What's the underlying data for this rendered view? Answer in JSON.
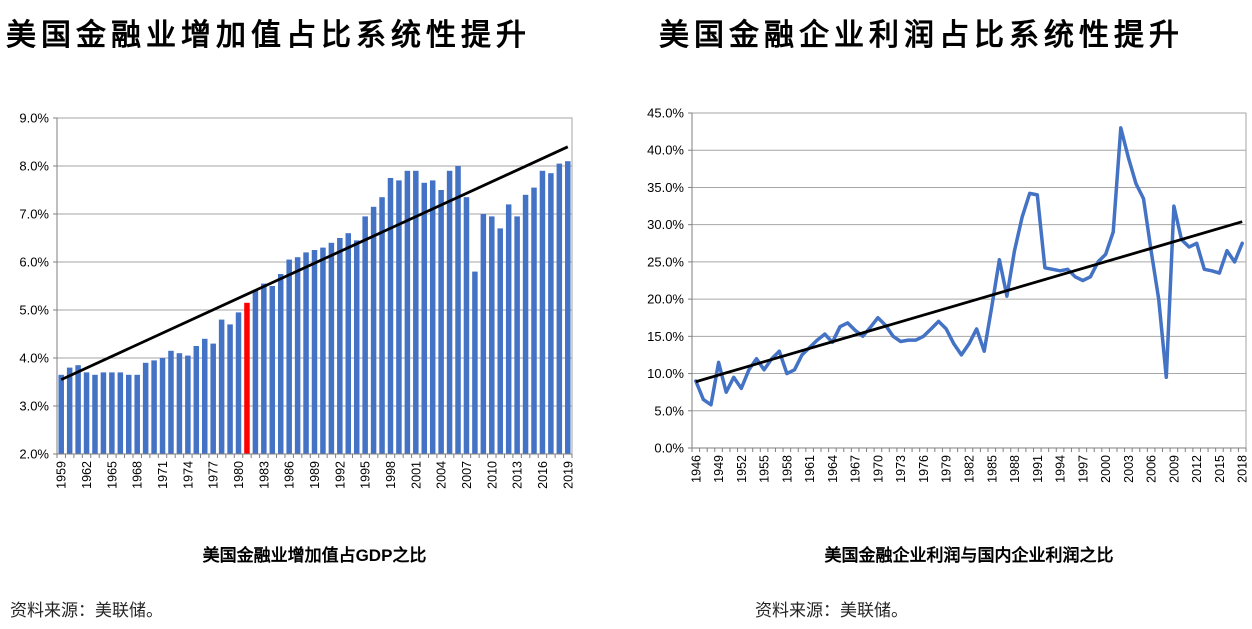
{
  "panels": [
    {
      "title": "美国金融业增加值占比系统性提升",
      "caption": "美国金融业增加值占GDP之比",
      "source": "资料来源：美联储。"
    },
    {
      "title": "美国金融企业利润占比系统性提升",
      "caption": "美国金融企业利润与国内企业利润之比",
      "source": "资料来源：美联储。"
    }
  ],
  "colors": {
    "series_blue": "#4472C4",
    "highlight_red": "#FF0000",
    "trend_black": "#000000",
    "grid_gray": "#A6A6A6",
    "axis_gray": "#7F7F7F"
  },
  "chart_data": [
    {
      "name": "us-finance-value-added-share-of-gdp",
      "type": "bar",
      "title": "美国金融业增加值占GDP之比",
      "start_year": 1959,
      "end_year": 2019,
      "frequency": "annual",
      "unit": "percent of GDP",
      "values": [
        3.65,
        3.8,
        3.85,
        3.7,
        3.65,
        3.7,
        3.7,
        3.7,
        3.65,
        3.65,
        3.9,
        3.95,
        4.0,
        4.15,
        4.1,
        4.05,
        4.25,
        4.4,
        4.3,
        4.8,
        4.7,
        4.95,
        5.15,
        5.4,
        5.55,
        5.5,
        5.75,
        6.05,
        6.1,
        6.2,
        6.25,
        6.3,
        6.4,
        6.5,
        6.6,
        6.45,
        6.95,
        7.15,
        7.35,
        7.75,
        7.7,
        7.9,
        7.9,
        7.65,
        7.7,
        7.5,
        7.9,
        8.0,
        7.35,
        5.8,
        7.0,
        6.95,
        6.7,
        7.2,
        6.95,
        7.4,
        7.55,
        7.9,
        7.85,
        8.05,
        8.1
      ],
      "ylim": [
        2,
        9
      ],
      "ytick_labels": [
        "2.0%",
        "3.0%",
        "4.0%",
        "5.0%",
        "6.0%",
        "7.0%",
        "8.0%",
        "9.0%"
      ],
      "xtick_labels": [
        "1959",
        "1962",
        "1965",
        "1968",
        "1971",
        "1974",
        "1977",
        "1980",
        "1983",
        "1986",
        "1989",
        "1992",
        "1995",
        "1998",
        "2001",
        "2004",
        "2007",
        "2010",
        "2013",
        "2016",
        "2019"
      ],
      "xtick_every": 3,
      "bar_color": "#4472C4",
      "highlight": {
        "year": 1981,
        "value": 5.15,
        "color": "#FF0000"
      },
      "trend": {
        "from_year": 1959,
        "from_value": 3.55,
        "to_year": 2019,
        "to_value": 8.4,
        "color": "#000000"
      },
      "grid": true,
      "legend": "none"
    },
    {
      "name": "us-financial-profits-to-domestic-profits-ratio",
      "type": "line",
      "title": "美国金融企业利润与国内企业利润之比",
      "start_year": 1946,
      "end_year": 2018,
      "frequency": "annual",
      "unit": "percent of domestic corporate profits",
      "values": [
        9.0,
        6.5,
        5.8,
        11.5,
        7.5,
        9.5,
        8.0,
        10.5,
        12.0,
        10.5,
        12.0,
        13.0,
        10.0,
        10.5,
        12.5,
        13.5,
        14.5,
        15.3,
        14.2,
        16.3,
        16.8,
        15.8,
        15.0,
        16.2,
        17.5,
        16.5,
        15.0,
        14.3,
        14.5,
        14.5,
        15.0,
        16.0,
        17.0,
        16.0,
        14.0,
        12.5,
        14.0,
        16.0,
        13.0,
        19.0,
        25.3,
        20.4,
        26.5,
        31.0,
        34.2,
        34.0,
        24.2,
        24.0,
        23.8,
        24.0,
        23.0,
        22.5,
        23.0,
        25.0,
        26.0,
        29.0,
        43.0,
        39.0,
        35.5,
        33.5,
        26.5,
        20.0,
        9.5,
        32.5,
        28.0,
        27.0,
        27.5,
        24.0,
        23.8,
        23.5,
        26.5,
        25.0,
        27.5
      ],
      "ylim": [
        0,
        45
      ],
      "ytick_labels": [
        "0.0%",
        "5.0%",
        "10.0%",
        "15.0%",
        "20.0%",
        "25.0%",
        "30.0%",
        "35.0%",
        "40.0%",
        "45.0%"
      ],
      "xtick_labels": [
        "1946",
        "1949",
        "1952",
        "1955",
        "1958",
        "1961",
        "1964",
        "1967",
        "1970",
        "1973",
        "1976",
        "1979",
        "1982",
        "1985",
        "1988",
        "1991",
        "1994",
        "1997",
        "2000",
        "2003",
        "2006",
        "2009",
        "2012",
        "2015",
        "2018"
      ],
      "xtick_every": 3,
      "line_color": "#4472C4",
      "trend": {
        "from_year": 1946,
        "from_value": 8.9,
        "to_year": 2018,
        "to_value": 30.4,
        "color": "#000000"
      },
      "grid": true,
      "legend": "none"
    }
  ]
}
